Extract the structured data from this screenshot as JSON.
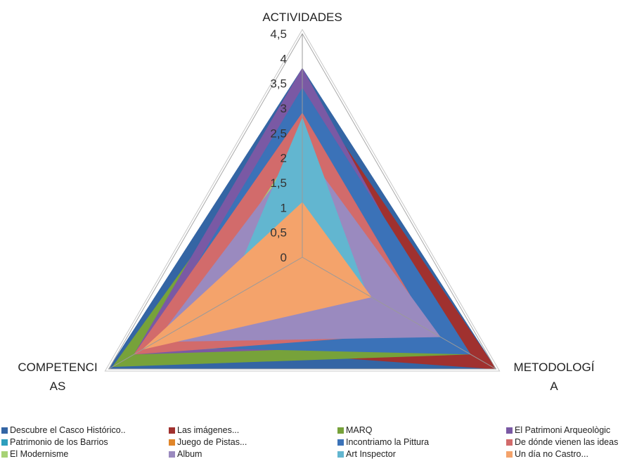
{
  "chart_data": {
    "type": "radar",
    "title": "",
    "axes": [
      "ACTIVIDADES",
      "METODOLOGÍA",
      "COMPETENCIAS"
    ],
    "axis_label_lines": [
      [
        "ACTIVIDADES"
      ],
      [
        "METODOLOGÍ",
        "A"
      ],
      [
        "COMPETENCI",
        "AS"
      ]
    ],
    "rlim": [
      0,
      4.5
    ],
    "ticks": [
      "0",
      "0,5",
      "1",
      "1,5",
      "2",
      "2,5",
      "3",
      "3,5",
      "4",
      "4,5"
    ],
    "tick_values": [
      0,
      0.5,
      1,
      1.5,
      2,
      2.5,
      3,
      3.5,
      4,
      4.5
    ],
    "filled": true,
    "legend_position": "bottom",
    "series": [
      {
        "name": "Descubre el Casco Histórico..",
        "color": "#3465a4",
        "values": [
          3.8,
          4.5,
          4.5
        ]
      },
      {
        "name": "Las imágenes...",
        "color": "#a0312f",
        "values": [
          3.5,
          4.5,
          3.5
        ]
      },
      {
        "name": "MARQ",
        "color": "#77a23a",
        "values": [
          3.1,
          3.9,
          4.4
        ]
      },
      {
        "name": "El Patrimoni Arqueològic",
        "color": "#7a59a4",
        "values": [
          3.8,
          3.5,
          3.9
        ]
      },
      {
        "name": "Patrimonio de los Barrios",
        "color": "#2e9fbd",
        "values": [
          2.8,
          3.3,
          3.8
        ]
      },
      {
        "name": "Juego de Pistas...",
        "color": "#e0862a",
        "values": [
          2.8,
          2.6,
          3.7
        ]
      },
      {
        "name": "Incontriamo la Pittura",
        "color": "#3b72b8",
        "values": [
          3.4,
          3.9,
          3.6
        ]
      },
      {
        "name": "De dónde vienen las ideas",
        "color": "#d26b6b",
        "values": [
          2.9,
          3.0,
          3.9
        ]
      },
      {
        "name": "El Modernisme",
        "color": "#a7d276",
        "values": [
          2.4,
          1.0,
          2.8
        ]
      },
      {
        "name": "Album",
        "color": "#9a8abf",
        "values": [
          2.2,
          3.2,
          3.4
        ]
      },
      {
        "name": "Art Inspector",
        "color": "#62b6d0",
        "values": [
          2.8,
          1.5,
          1.8
        ]
      },
      {
        "name": "Un día no Castro...",
        "color": "#f4a36b",
        "values": [
          1.1,
          1.6,
          3.7
        ]
      }
    ]
  }
}
